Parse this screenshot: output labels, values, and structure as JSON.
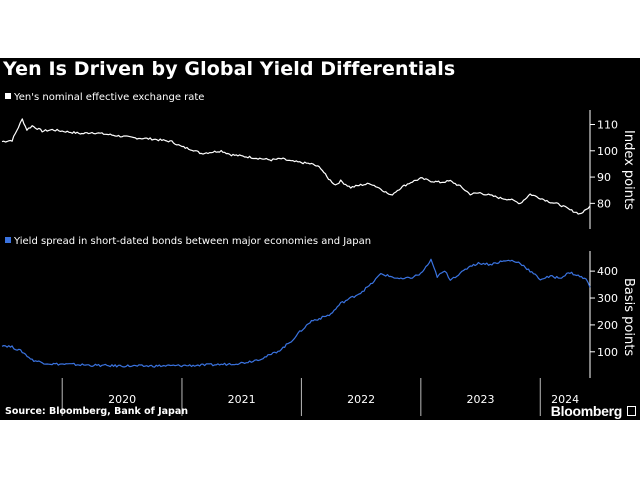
{
  "page": {
    "title": "Yen Is Driven by Global Yield Differentials",
    "source": "Source: Bloomberg, Bank of Japan",
    "brand": "Bloomberg"
  },
  "colors": {
    "background": "#000000",
    "series1": "#ffffff",
    "series2": "#3a73e0",
    "text": "#ffffff"
  },
  "chart_data": [
    {
      "type": "line",
      "title": "",
      "ylabel": "Index points",
      "ylim": [
        71,
        114
      ],
      "yticks": [
        80,
        90,
        100,
        110
      ],
      "x_range": [
        "2019-07-01",
        "2024-06-01"
      ],
      "xticks": [
        "2020",
        "2021",
        "2022",
        "2023",
        "2024"
      ],
      "series": [
        {
          "name": "Yen's nominal effective exchange rate",
          "color": "#ffffff",
          "points": [
            [
              "2019-07-01",
              103.5
            ],
            [
              "2019-08-01",
              104
            ],
            [
              "2019-08-20",
              109
            ],
            [
              "2019-09-01",
              112
            ],
            [
              "2019-09-15",
              108
            ],
            [
              "2019-10-01",
              109.5
            ],
            [
              "2019-11-01",
              107.5
            ],
            [
              "2019-12-01",
              108
            ],
            [
              "2020-01-01",
              107.5
            ],
            [
              "2020-02-01",
              107
            ],
            [
              "2020-03-01",
              106.5
            ],
            [
              "2020-04-01",
              107
            ],
            [
              "2020-06-01",
              106
            ],
            [
              "2020-08-01",
              105
            ],
            [
              "2020-10-01",
              104.5
            ],
            [
              "2020-12-01",
              103.5
            ],
            [
              "2021-01-01",
              101.5
            ],
            [
              "2021-02-01",
              100.5
            ],
            [
              "2021-03-01",
              99
            ],
            [
              "2021-04-01",
              99.5
            ],
            [
              "2021-05-01",
              100
            ],
            [
              "2021-06-01",
              98.5
            ],
            [
              "2021-07-01",
              98
            ],
            [
              "2021-08-01",
              97.5
            ],
            [
              "2021-09-01",
              97
            ],
            [
              "2021-10-01",
              96.5
            ],
            [
              "2021-11-01",
              97
            ],
            [
              "2021-12-01",
              96
            ],
            [
              "2022-01-01",
              95.5
            ],
            [
              "2022-02-01",
              95
            ],
            [
              "2022-03-01",
              93.5
            ],
            [
              "2022-03-20",
              90
            ],
            [
              "2022-04-15",
              87
            ],
            [
              "2022-05-01",
              88.5
            ],
            [
              "2022-06-01",
              86
            ],
            [
              "2022-07-01",
              87
            ],
            [
              "2022-08-01",
              87.5
            ],
            [
              "2022-09-01",
              85.5
            ],
            [
              "2022-10-01",
              83
            ],
            [
              "2022-11-01",
              86
            ],
            [
              "2022-12-01",
              88
            ],
            [
              "2023-01-01",
              89.5
            ],
            [
              "2023-02-01",
              88.5
            ],
            [
              "2023-03-01",
              88
            ],
            [
              "2023-04-01",
              88.5
            ],
            [
              "2023-05-01",
              86.5
            ],
            [
              "2023-06-01",
              83.5
            ],
            [
              "2023-07-01",
              84
            ],
            [
              "2023-08-01",
              83
            ],
            [
              "2023-09-01",
              82
            ],
            [
              "2023-10-01",
              81.5
            ],
            [
              "2023-11-01",
              80
            ],
            [
              "2023-12-01",
              83.5
            ],
            [
              "2024-01-01",
              82
            ],
            [
              "2024-02-01",
              80.5
            ],
            [
              "2024-03-01",
              79.5
            ],
            [
              "2024-04-01",
              77.5
            ],
            [
              "2024-05-01",
              76
            ],
            [
              "2024-05-15",
              77
            ],
            [
              "2024-06-01",
              79
            ]
          ]
        }
      ]
    },
    {
      "type": "line",
      "title": "",
      "ylabel": "Basis points",
      "ylim": [
        10,
        460
      ],
      "yticks": [
        100,
        200,
        300,
        400
      ],
      "x_range": [
        "2019-07-01",
        "2024-06-01"
      ],
      "xticks": [
        "2020",
        "2021",
        "2022",
        "2023",
        "2024"
      ],
      "series": [
        {
          "name": "Yield spread in short-dated bonds between major economies and Japan",
          "color": "#3a73e0",
          "points": [
            [
              "2019-07-01",
              125
            ],
            [
              "2019-08-01",
              118
            ],
            [
              "2019-09-01",
              100
            ],
            [
              "2019-10-01",
              70
            ],
            [
              "2019-11-01",
              60
            ],
            [
              "2019-12-01",
              55
            ],
            [
              "2020-02-01",
              53
            ],
            [
              "2020-04-01",
              50
            ],
            [
              "2020-06-01",
              48
            ],
            [
              "2020-09-01",
              47
            ],
            [
              "2020-12-01",
              48
            ],
            [
              "2021-03-01",
              50
            ],
            [
              "2021-05-01",
              53
            ],
            [
              "2021-07-01",
              58
            ],
            [
              "2021-08-01",
              65
            ],
            [
              "2021-09-01",
              75
            ],
            [
              "2021-10-01",
              90
            ],
            [
              "2021-11-01",
              110
            ],
            [
              "2021-12-01",
              140
            ],
            [
              "2022-01-01",
              180
            ],
            [
              "2022-02-01",
              215
            ],
            [
              "2022-03-01",
              225
            ],
            [
              "2022-04-01",
              240
            ],
            [
              "2022-05-01",
              280
            ],
            [
              "2022-06-01",
              300
            ],
            [
              "2022-07-01",
              320
            ],
            [
              "2022-08-01",
              350
            ],
            [
              "2022-09-01",
              390
            ],
            [
              "2022-10-01",
              380
            ],
            [
              "2022-11-01",
              370
            ],
            [
              "2022-12-01",
              375
            ],
            [
              "2023-01-01",
              390
            ],
            [
              "2023-02-01",
              440
            ],
            [
              "2023-02-20",
              380
            ],
            [
              "2023-03-15",
              400
            ],
            [
              "2023-04-01",
              370
            ],
            [
              "2023-05-01",
              390
            ],
            [
              "2023-06-01",
              420
            ],
            [
              "2023-07-01",
              430
            ],
            [
              "2023-08-01",
              425
            ],
            [
              "2023-09-01",
              435
            ],
            [
              "2023-10-01",
              440
            ],
            [
              "2023-11-01",
              430
            ],
            [
              "2023-12-01",
              400
            ],
            [
              "2024-01-01",
              370
            ],
            [
              "2024-02-01",
              380
            ],
            [
              "2024-03-01",
              375
            ],
            [
              "2024-04-01",
              395
            ],
            [
              "2024-05-01",
              380
            ],
            [
              "2024-05-20",
              370
            ],
            [
              "2024-06-01",
              340
            ]
          ]
        }
      ]
    }
  ]
}
